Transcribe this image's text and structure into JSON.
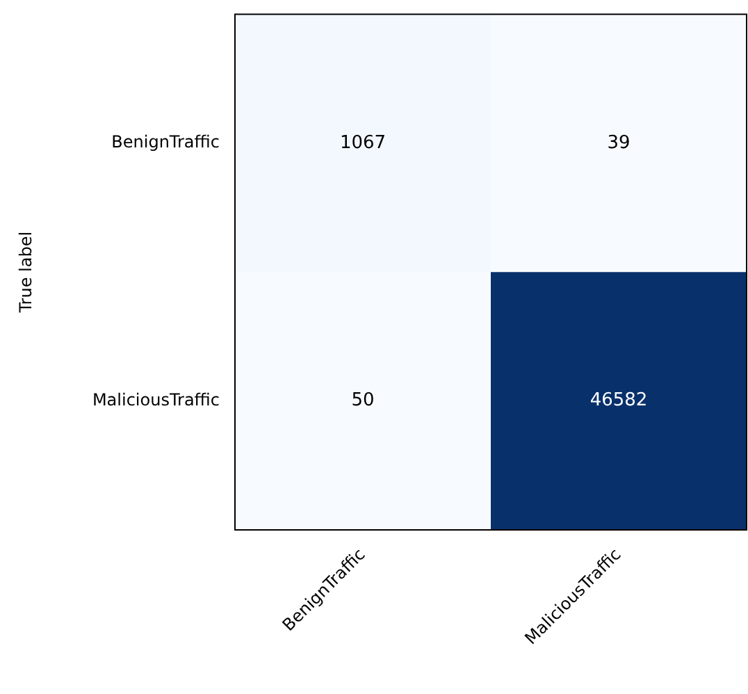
{
  "chart_data": {
    "type": "heatmap",
    "ylabel": "True label",
    "categories": [
      "BenignTraffic",
      "MaliciousTraffic"
    ],
    "y_categories": [
      "BenignTraffic",
      "MaliciousTraffic"
    ],
    "cells": [
      [
        1067,
        39
      ],
      [
        50,
        46582
      ]
    ],
    "data_labels": true
  }
}
